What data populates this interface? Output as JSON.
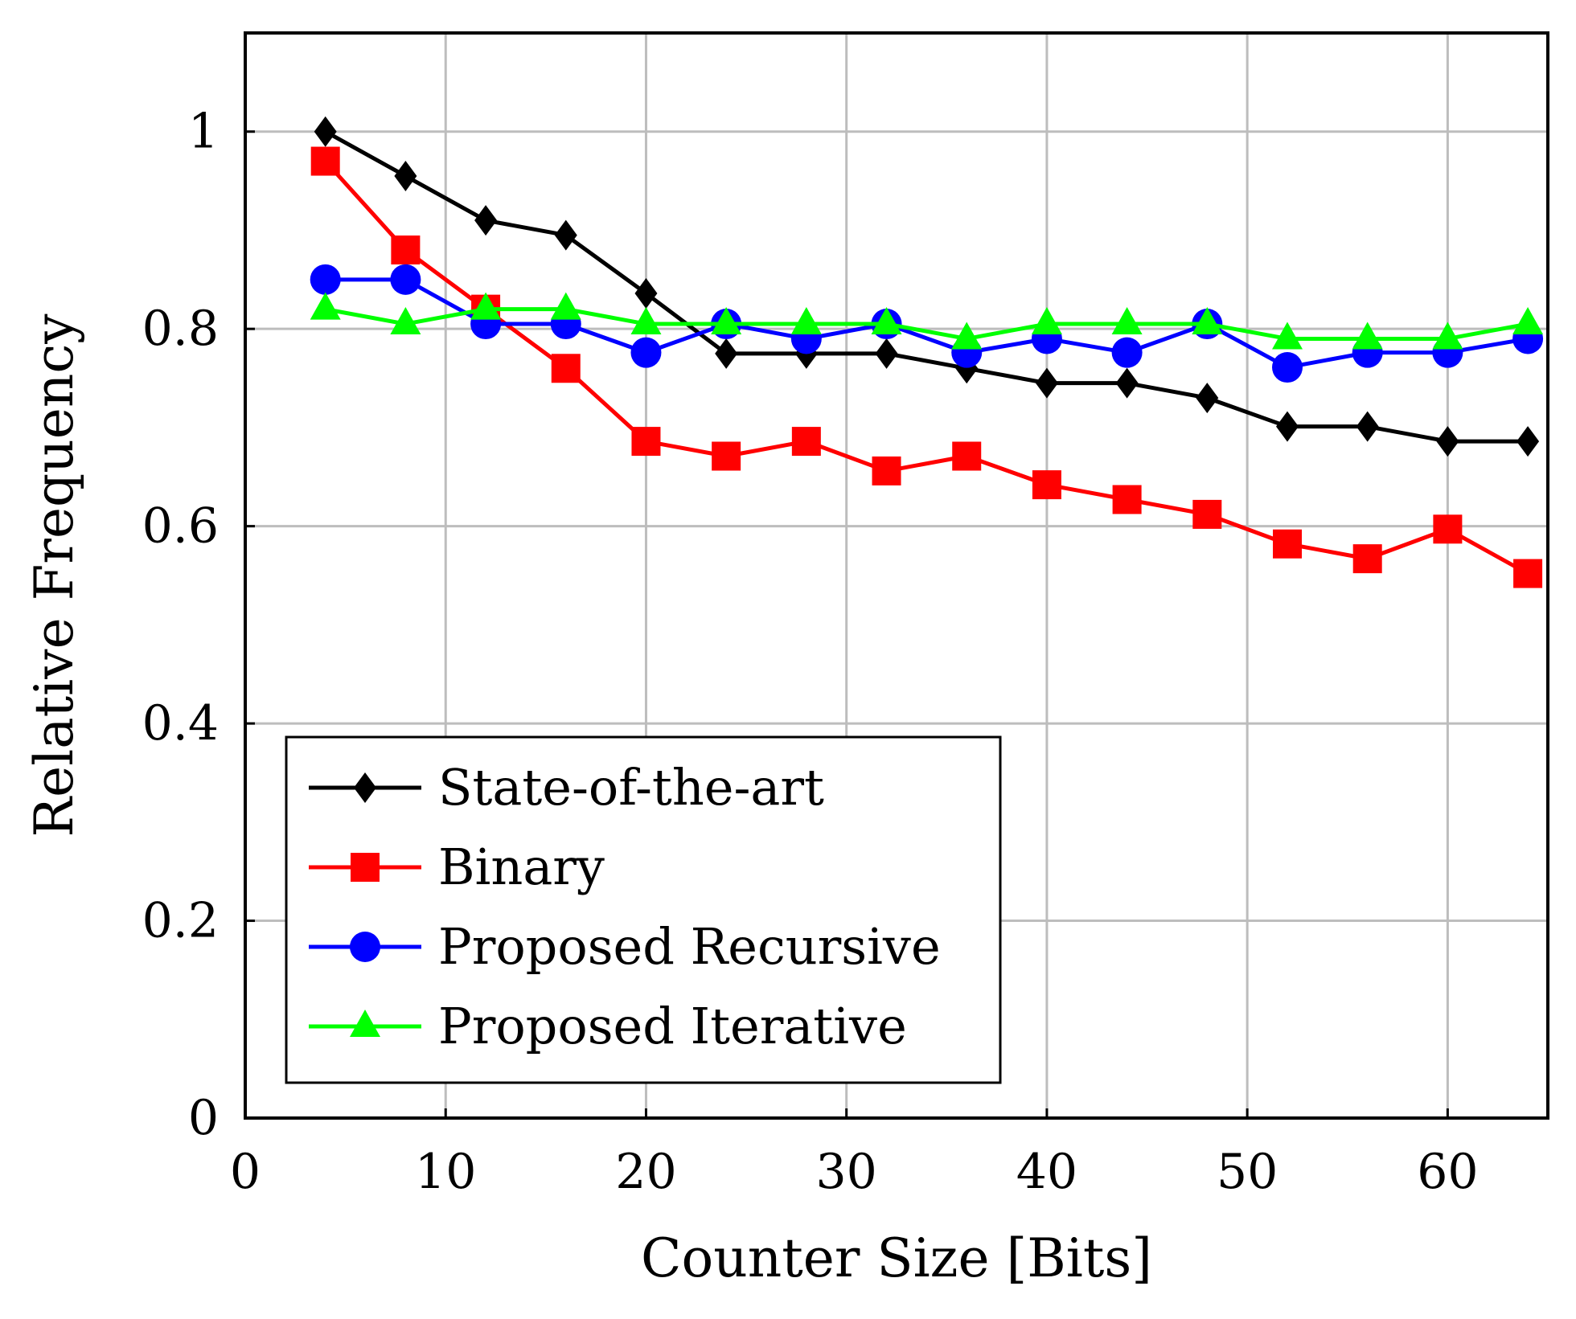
{
  "chart_data": {
    "type": "line",
    "xlabel": "Counter Size [Bits]",
    "ylabel": "Relative Frequency",
    "xlim": [
      0,
      65
    ],
    "ylim": [
      0,
      1.1
    ],
    "xticks": [
      0,
      10,
      20,
      30,
      40,
      50,
      60
    ],
    "yticks": [
      0,
      0.2,
      0.4,
      0.6,
      0.8,
      1
    ],
    "ytick_labels": [
      "0",
      "0.2",
      "0.4",
      "0.6",
      "0.8",
      "1"
    ],
    "grid": true,
    "legend_position": "bottom-left",
    "x": [
      4,
      8,
      12,
      16,
      20,
      24,
      28,
      32,
      36,
      40,
      44,
      48,
      52,
      56,
      60,
      64
    ],
    "series": [
      {
        "name": "State-of-the-art",
        "color": "#000000",
        "marker": "diamond",
        "values": [
          1.0,
          0.955,
          0.91,
          0.895,
          0.836,
          0.775,
          0.775,
          0.775,
          0.76,
          0.745,
          0.745,
          0.73,
          0.701,
          0.701,
          0.686,
          0.686
        ]
      },
      {
        "name": "Binary",
        "color": "#ff0000",
        "marker": "square",
        "values": [
          0.97,
          0.88,
          0.82,
          0.76,
          0.686,
          0.671,
          0.686,
          0.656,
          0.671,
          0.642,
          0.627,
          0.612,
          0.582,
          0.567,
          0.597,
          0.552
        ]
      },
      {
        "name": "Proposed Recursive",
        "color": "#0000ff",
        "marker": "circle",
        "values": [
          0.85,
          0.85,
          0.805,
          0.805,
          0.776,
          0.805,
          0.79,
          0.805,
          0.776,
          0.79,
          0.776,
          0.805,
          0.761,
          0.776,
          0.776,
          0.79
        ]
      },
      {
        "name": "Proposed Iterative",
        "color": "#00ff00",
        "marker": "triangle",
        "values": [
          0.82,
          0.805,
          0.82,
          0.82,
          0.805,
          0.805,
          0.805,
          0.805,
          0.79,
          0.805,
          0.805,
          0.805,
          0.79,
          0.79,
          0.79,
          0.805
        ]
      }
    ]
  }
}
